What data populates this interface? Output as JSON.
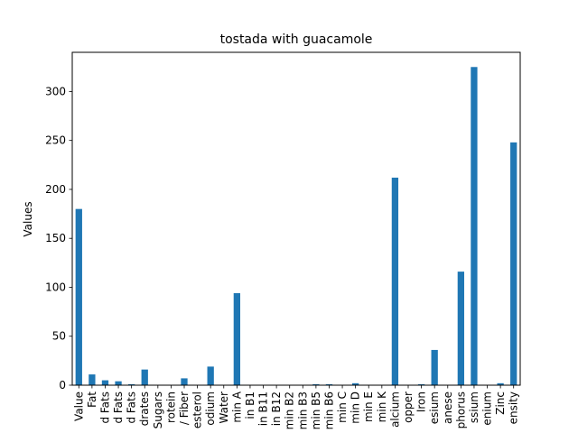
{
  "chart_data": {
    "type": "bar",
    "title": "tostada with guacamole",
    "xlabel": "",
    "ylabel": "Values",
    "ylim": [
      0,
      340
    ],
    "yticks": [
      0,
      50,
      100,
      150,
      200,
      250,
      300
    ],
    "grid": false,
    "bar_color": "#1f77b4",
    "categories": [
      "Value",
      "Fat",
      "d Fats",
      "d Fats",
      "d Fats",
      "drates",
      "Sugars",
      "rotein",
      "/ Fiber",
      "esterol",
      "odium",
      "Water",
      "min A",
      "in B1",
      "in B11",
      "in B12",
      "min B2",
      "min B3",
      "min B5",
      "min B6",
      "min C",
      "min D",
      "min E",
      "min K",
      "alcium",
      "opper",
      "Iron",
      "esium",
      "anese",
      "phorus",
      "ssium",
      "enium",
      "Zinc",
      "ensity"
    ],
    "values": [
      180,
      11,
      5,
      4,
      1,
      16,
      0,
      0,
      7,
      0,
      19,
      0,
      94,
      0,
      0,
      0,
      0,
      0,
      1,
      1,
      0,
      2,
      0,
      0,
      212,
      0,
      1,
      36,
      0,
      116,
      325,
      0,
      2,
      248
    ]
  }
}
